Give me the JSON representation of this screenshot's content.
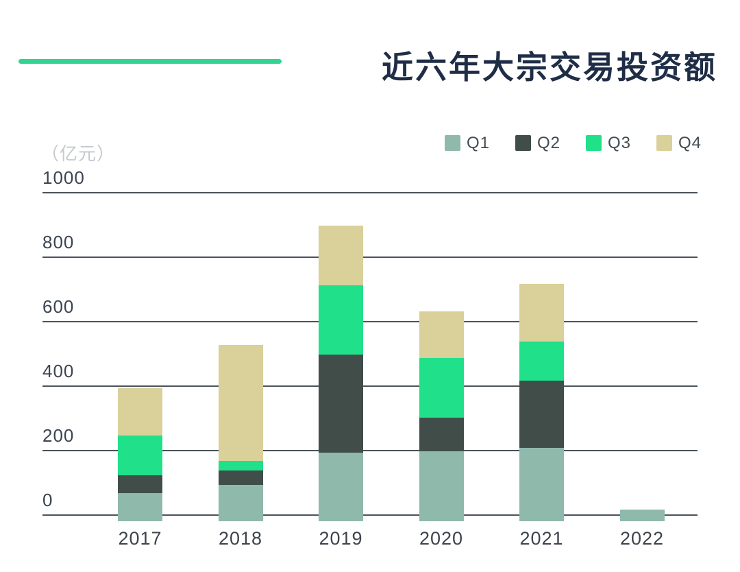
{
  "header": {
    "title": "近六年大宗交易投资额",
    "accent_color": "#33d491"
  },
  "chart_data": {
    "type": "bar",
    "stacked": true,
    "title": "近六年大宗交易投资额",
    "unit_label": "（亿元）",
    "xlabel": "",
    "ylabel": "亿元",
    "categories": [
      "2017",
      "2018",
      "2019",
      "2020",
      "2021",
      "2022"
    ],
    "series": [
      {
        "name": "Q1",
        "color": "#8fb9ab",
        "values": [
          70,
          95,
          195,
          200,
          210,
          20
        ]
      },
      {
        "name": "Q2",
        "color": "#414d49",
        "values": [
          55,
          45,
          305,
          105,
          210,
          0
        ]
      },
      {
        "name": "Q3",
        "color": "#20e08a",
        "values": [
          125,
          30,
          215,
          185,
          120,
          0
        ]
      },
      {
        "name": "Q4",
        "color": "#d9d09a",
        "values": [
          145,
          360,
          185,
          145,
          180,
          0
        ]
      }
    ],
    "totals": [
      395,
      530,
      900,
      635,
      720,
      20
    ],
    "y_ticks": [
      0,
      200,
      400,
      600,
      800,
      1000
    ],
    "ylim": [
      0,
      1000
    ],
    "grid": true,
    "legend_position": "top-right"
  }
}
